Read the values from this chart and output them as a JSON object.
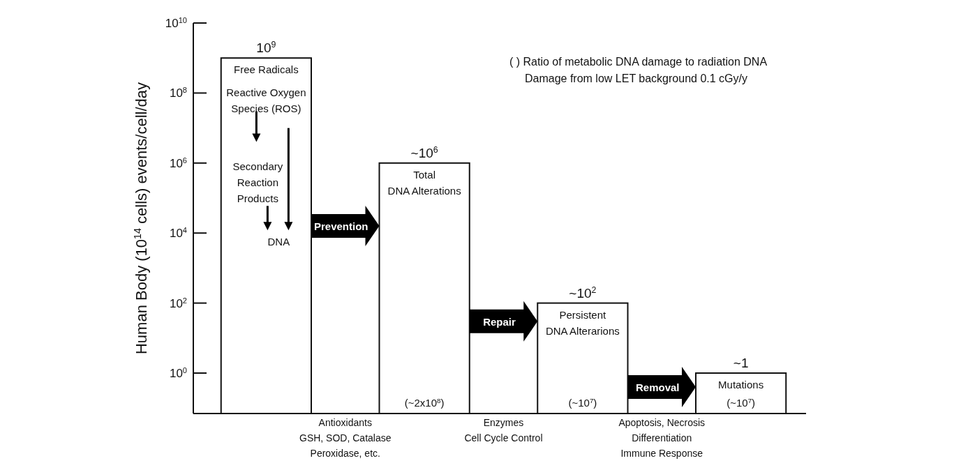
{
  "chart_data": {
    "type": "bar",
    "ylabel": "Human Body (10$^{14}$ cells) events/cell/day",
    "categories": [
      "Free Radicals",
      "Total\nDNA Alterations",
      "Persistent\nDNA Alterarions",
      "Mutations"
    ],
    "values": [
      1000000000,
      1000000,
      100,
      1
    ],
    "value_labels": [
      "10$^{9}$",
      "~10$^{6}$",
      "~10$^{2}$",
      "~1"
    ],
    "color": "#ffffff",
    "log": true,
    "ylim": [
      0.07,
      10000000000
    ],
    "yticks": [
      {
        "value": 1,
        "label": "10$^{0}$"
      },
      {
        "value": 100,
        "label": "10$^{2}$"
      },
      {
        "value": 10000,
        "label": "10$^{4}$"
      },
      {
        "value": 1000000,
        "label": "10$^{6}$"
      },
      {
        "value": 100000000,
        "label": "10$^{8}$"
      },
      {
        "value": 10000000000,
        "label": "10$^{10}$"
      }
    ],
    "annotations": [
      "( ) Ratio of metabolic DNA damage to radiation DNA\nDamage from low LET background 0.1 cGy/y",
      "Reactive Oxygen\nSpecies (ROS)",
      "Secondary\nReaction\nProducts",
      "DNA",
      "Prevention",
      "Repair",
      "Removal",
      "Antioxidants\nGSH, SOD, Catalase\nPeroxidase, etc.",
      "Enzymes\nCell Cycle Control",
      "Apoptosis, Necrosis\nDifferentiation\nImmune Response",
      "(~2x10$^{8}$)",
      "(~10$^{7}$)",
      "(~10$^{7}$)"
    ]
  }
}
